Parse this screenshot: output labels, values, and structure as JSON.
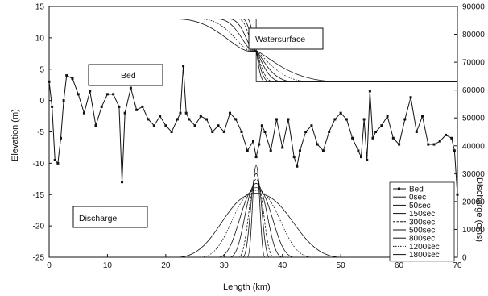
{
  "chart_data": {
    "type": "line",
    "xlabel": "Length (km)",
    "ylabel": "Elevation (m)",
    "y2label": "Discharge (cms)",
    "xlim": [
      0,
      70
    ],
    "ylim": [
      -25,
      15
    ],
    "y2lim": [
      0,
      90000
    ],
    "grid": false,
    "legend_position": "lower-right",
    "x_ticks": [
      "0",
      "10",
      "20",
      "30",
      "40",
      "50",
      "60",
      "70"
    ],
    "y_ticks": [
      "-25",
      "-20",
      "-15",
      "-10",
      "-5",
      "0",
      "5",
      "10",
      "15"
    ],
    "y2_ticks": [
      "0",
      "10000",
      "20000",
      "30000",
      "40000",
      "50000",
      "60000",
      "70000",
      "80000",
      "90000"
    ],
    "annotations": {
      "watersurface": "Watersurface",
      "bed": "Bed",
      "discharge": "Discharge"
    },
    "legend": [
      "Bed",
      "0sec",
      "50sec",
      "150sec",
      "300sec",
      "500sec",
      "800sec",
      "1200sec",
      "1800sec"
    ],
    "bed": {
      "name": "Bed",
      "x": [
        0,
        0.5,
        1,
        1.5,
        2,
        2.5,
        3,
        4,
        5,
        6,
        7,
        8,
        9,
        10,
        11,
        12,
        12.5,
        13,
        14,
        15,
        16,
        17,
        18,
        19,
        20,
        21,
        22,
        22.5,
        23,
        23.5,
        24,
        25,
        26,
        27,
        28,
        29,
        30,
        31,
        32,
        33,
        34,
        35,
        35.5,
        36,
        36.5,
        37,
        38,
        39,
        40,
        41,
        42,
        42.5,
        43,
        44,
        45,
        46,
        47,
        48,
        49,
        50,
        51,
        52,
        53,
        53.5,
        54,
        54.5,
        55,
        55.5,
        56,
        57,
        58,
        59,
        60,
        61,
        62,
        63,
        64,
        65,
        66,
        67,
        68,
        69,
        69.5,
        70
      ],
      "values": [
        3,
        -1,
        -9.5,
        -10,
        -6,
        0,
        4,
        3.5,
        1,
        -2,
        1.5,
        -4,
        -1,
        1,
        1,
        -1,
        -13,
        -2,
        2,
        -1.5,
        -1,
        -3,
        -4,
        -2.5,
        -4,
        -5,
        -3,
        -2,
        5.5,
        -2,
        -3,
        -4,
        -2.5,
        -3,
        -5,
        -4,
        -5,
        -2,
        -3,
        -5,
        -8,
        -6.5,
        -9,
        -7,
        -4,
        -5,
        -8,
        -3,
        -7.5,
        -3,
        -9,
        -10.5,
        -8,
        -5,
        -4,
        -7,
        -8,
        -5,
        -3,
        -2,
        -3,
        -6,
        -8,
        -9,
        -3,
        -9.5,
        1.5,
        -6,
        -5,
        -4,
        -2.5,
        -6,
        -7,
        -3,
        0.5,
        -5,
        -2.5,
        -7,
        -7,
        -6.5,
        -5.5,
        -6,
        -8,
        -15
      ]
    },
    "discharge": {
      "series": [
        {
          "name": "0sec",
          "x": [
            0,
            35.5,
            35.5,
            70
          ],
          "values": [
            0,
            0,
            0,
            0
          ]
        },
        {
          "name": "50sec",
          "x": [
            0,
            34.0,
            35.5,
            37.0,
            70
          ],
          "values": [
            0,
            0,
            33000,
            0,
            0
          ]
        },
        {
          "name": "150sec",
          "x": [
            0,
            33.2,
            35.5,
            37.8,
            70
          ],
          "values": [
            0,
            0,
            30000,
            0,
            0
          ]
        },
        {
          "name": "300sec",
          "x": [
            0,
            32.5,
            35.5,
            38.5,
            70
          ],
          "values": [
            0,
            0,
            28000,
            0,
            0
          ]
        },
        {
          "name": "500sec",
          "x": [
            0,
            31.0,
            35.5,
            40.0,
            70
          ],
          "values": [
            0,
            0,
            26500,
            0,
            0
          ]
        },
        {
          "name": "800sec",
          "x": [
            0,
            29.0,
            35.5,
            42.0,
            70
          ],
          "values": [
            0,
            0,
            25000,
            0,
            0
          ]
        },
        {
          "name": "1200sec",
          "x": [
            0,
            26.0,
            35.5,
            45.0,
            70
          ],
          "values": [
            0,
            0,
            24000,
            0,
            0
          ]
        },
        {
          "name": "1800sec",
          "x": [
            0,
            22.0,
            35.5,
            50.0,
            70
          ],
          "values": [
            0,
            0,
            23000,
            0,
            0
          ]
        }
      ]
    },
    "watersurface": {
      "series": [
        {
          "name": "0sec",
          "x": [
            0,
            35.5,
            35.5,
            70
          ],
          "values": [
            13,
            13,
            3,
            3
          ]
        },
        {
          "name": "50sec",
          "x": [
            0,
            34.0,
            35.5,
            37.0,
            70
          ],
          "values": [
            13,
            13,
            8,
            3,
            3
          ]
        },
        {
          "name": "150sec",
          "x": [
            0,
            33.2,
            35.5,
            37.8,
            70
          ],
          "values": [
            13,
            13,
            8,
            3,
            3
          ]
        },
        {
          "name": "300sec",
          "x": [
            0,
            32.5,
            35.5,
            38.5,
            70
          ],
          "values": [
            13,
            13,
            8,
            3,
            3
          ]
        },
        {
          "name": "500sec",
          "x": [
            0,
            31.0,
            35.5,
            40.0,
            70
          ],
          "values": [
            13,
            13,
            8,
            3,
            3
          ]
        },
        {
          "name": "800sec",
          "x": [
            0,
            29.0,
            35.5,
            42.0,
            70
          ],
          "values": [
            13,
            13,
            8,
            3,
            3
          ]
        },
        {
          "name": "1200sec",
          "x": [
            0,
            26.0,
            35.5,
            45.0,
            70
          ],
          "values": [
            13,
            13,
            8,
            3,
            3
          ]
        },
        {
          "name": "1800sec",
          "x": [
            0,
            22.0,
            35.5,
            50.0,
            70
          ],
          "values": [
            13,
            13,
            8,
            3,
            3
          ]
        }
      ]
    }
  }
}
